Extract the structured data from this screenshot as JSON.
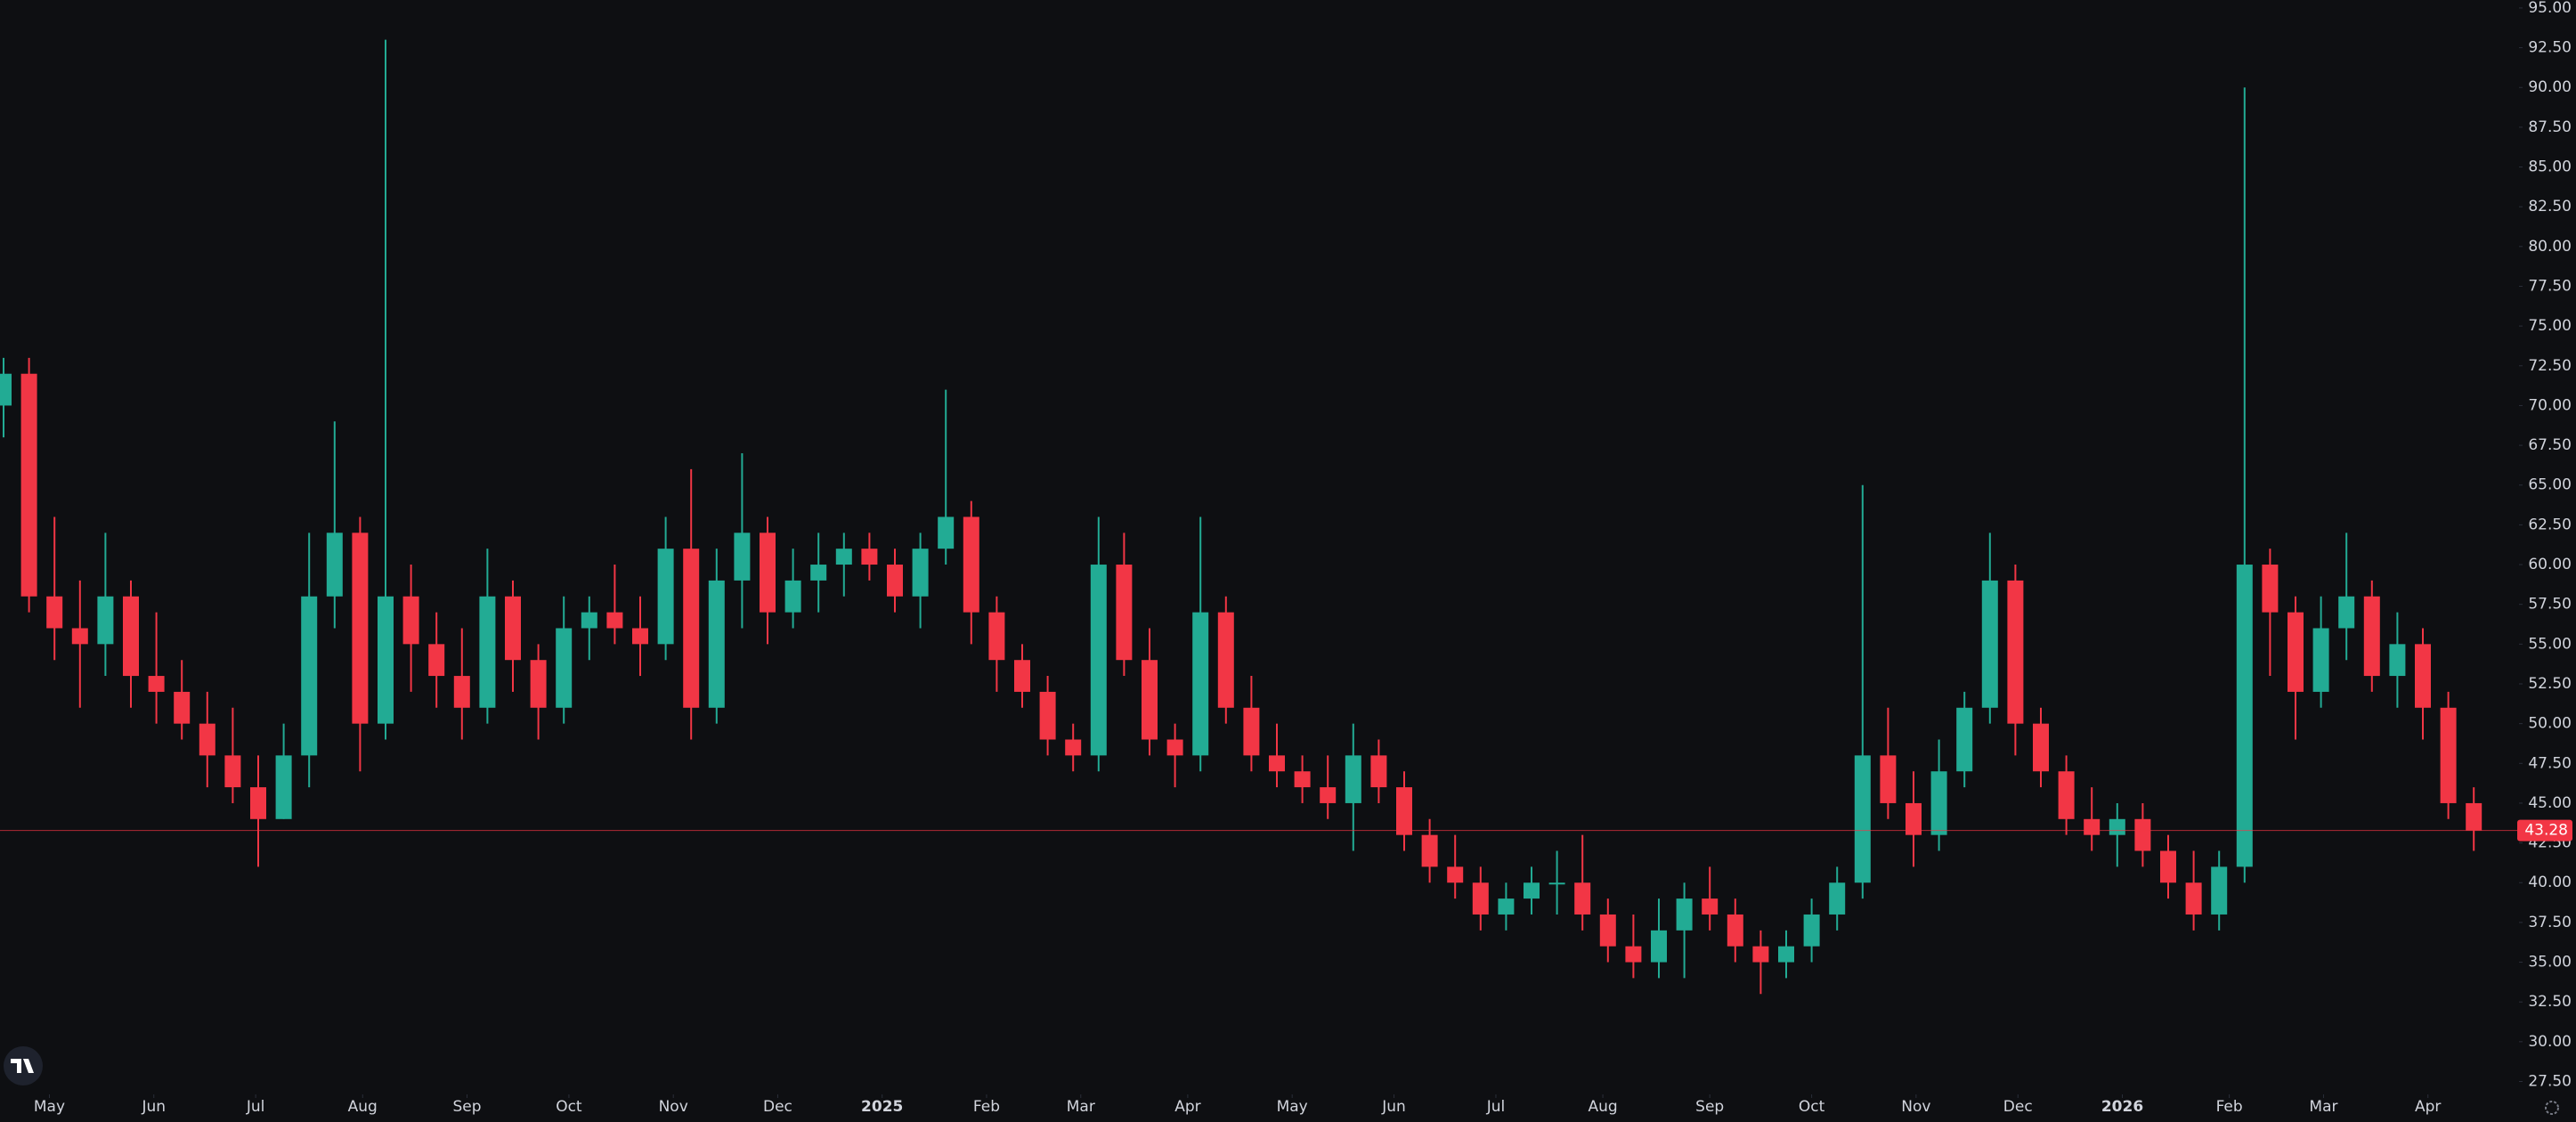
{
  "chart_data": {
    "type": "candlestick",
    "up_color": "#22ab94",
    "down_color": "#f23645",
    "open": [
      70,
      72,
      58,
      56,
      55,
      58,
      53,
      52,
      50,
      48,
      46,
      44,
      48,
      58,
      62,
      50,
      58,
      55,
      53,
      51,
      58,
      54,
      51,
      56,
      57,
      56,
      55,
      61,
      51,
      59,
      62,
      57,
      59,
      60,
      61,
      60,
      58,
      61,
      63,
      57,
      54,
      52,
      49,
      48,
      60,
      54,
      49,
      48,
      57,
      51,
      48,
      47,
      46,
      45,
      48,
      46,
      43,
      41,
      40,
      38,
      39,
      40,
      40,
      38,
      36,
      35,
      37,
      39,
      38,
      36,
      35,
      36,
      38,
      40,
      48,
      45,
      43,
      47,
      51,
      59,
      50,
      47,
      44,
      43,
      44,
      42,
      40,
      38,
      41,
      60,
      57,
      52,
      56,
      58,
      53,
      55,
      51,
      45
    ],
    "high": [
      73,
      73,
      63,
      59,
      62,
      59,
      57,
      54,
      52,
      51,
      48,
      50,
      62,
      69,
      63,
      93,
      60,
      57,
      56,
      61,
      59,
      55,
      58,
      58,
      60,
      58,
      63,
      66,
      61,
      67,
      63,
      61,
      62,
      62,
      62,
      61,
      62,
      71,
      64,
      58,
      55,
      53,
      50,
      63,
      62,
      56,
      50,
      63,
      58,
      53,
      50,
      48,
      48,
      50,
      49,
      47,
      44,
      43,
      41,
      40,
      41,
      42,
      43,
      39,
      38,
      39,
      40,
      41,
      39,
      37,
      37,
      39,
      41,
      65,
      51,
      47,
      49,
      52,
      62,
      60,
      51,
      48,
      46,
      45,
      45,
      43,
      42,
      42,
      90,
      61,
      58,
      58,
      62,
      59,
      57,
      56,
      52,
      46
    ],
    "low": [
      68,
      57,
      54,
      51,
      53,
      51,
      50,
      49,
      46,
      45,
      41,
      44,
      46,
      56,
      47,
      49,
      52,
      51,
      49,
      50,
      52,
      49,
      50,
      54,
      55,
      53,
      54,
      49,
      50,
      56,
      55,
      56,
      57,
      58,
      59,
      57,
      56,
      60,
      55,
      52,
      51,
      48,
      47,
      47,
      53,
      48,
      46,
      47,
      50,
      47,
      46,
      45,
      44,
      42,
      45,
      42,
      40,
      39,
      37,
      37,
      38,
      38,
      37,
      35,
      34,
      34,
      34,
      37,
      35,
      33,
      34,
      35,
      37,
      39,
      44,
      41,
      42,
      46,
      50,
      48,
      46,
      43,
      42,
      41,
      41,
      39,
      37,
      37,
      40,
      53,
      49,
      51,
      54,
      52,
      51,
      49,
      44,
      42
    ],
    "close": [
      72,
      58,
      56,
      55,
      58,
      53,
      52,
      50,
      48,
      46,
      44,
      48,
      58,
      62,
      50,
      58,
      55,
      53,
      51,
      58,
      54,
      51,
      56,
      57,
      56,
      55,
      61,
      51,
      59,
      62,
      57,
      59,
      60,
      61,
      60,
      58,
      61,
      63,
      57,
      54,
      52,
      49,
      48,
      60,
      54,
      49,
      48,
      57,
      51,
      48,
      47,
      46,
      45,
      48,
      46,
      43,
      41,
      40,
      38,
      39,
      40,
      40,
      38,
      36,
      35,
      37,
      39,
      38,
      36,
      35,
      36,
      38,
      40,
      48,
      45,
      43,
      47,
      51,
      59,
      50,
      47,
      44,
      43,
      44,
      42,
      40,
      38,
      41,
      60,
      57,
      52,
      56,
      58,
      53,
      55,
      51,
      45,
      43.28
    ],
    "last_price": 43.28,
    "ylim": [
      26.8,
      95.5
    ],
    "yticks": [
      {
        "value": 27.5,
        "label": "27.50"
      },
      {
        "value": 30,
        "label": "30.00"
      },
      {
        "value": 32.5,
        "label": "32.50"
      },
      {
        "value": 35,
        "label": "35.00"
      },
      {
        "value": 37.5,
        "label": "37.50"
      },
      {
        "value": 40,
        "label": "40.00"
      },
      {
        "value": 42.5,
        "label": "42.50"
      },
      {
        "value": 45,
        "label": "45.00"
      },
      {
        "value": 47.5,
        "label": "47.50"
      },
      {
        "value": 50,
        "label": "50.00"
      },
      {
        "value": 52.5,
        "label": "52.50"
      },
      {
        "value": 55,
        "label": "55.00"
      },
      {
        "value": 57.5,
        "label": "57.50"
      },
      {
        "value": 60,
        "label": "60.00"
      },
      {
        "value": 62.5,
        "label": "62.50"
      },
      {
        "value": 65,
        "label": "65.00"
      },
      {
        "value": 67.5,
        "label": "67.50"
      },
      {
        "value": 70,
        "label": "70.00"
      },
      {
        "value": 72.5,
        "label": "72.50"
      },
      {
        "value": 75,
        "label": "75.00"
      },
      {
        "value": 77.5,
        "label": "77.50"
      },
      {
        "value": 80,
        "label": "80.00"
      },
      {
        "value": 82.5,
        "label": "82.50"
      },
      {
        "value": 85,
        "label": "85.00"
      },
      {
        "value": 87.5,
        "label": "87.50"
      },
      {
        "value": 90,
        "label": "90.00"
      },
      {
        "value": 92.5,
        "label": "92.50"
      },
      {
        "value": 95,
        "label": "95.00"
      }
    ],
    "xticks": [
      {
        "value": 1.8,
        "label": "May"
      },
      {
        "value": 5.9,
        "label": "Jun"
      },
      {
        "value": 9.9,
        "label": "Jul"
      },
      {
        "value": 14.1,
        "label": "Aug"
      },
      {
        "value": 18.2,
        "label": "Sep"
      },
      {
        "value": 22.2,
        "label": "Oct"
      },
      {
        "value": 26.3,
        "label": "Nov"
      },
      {
        "value": 30.4,
        "label": "Dec"
      },
      {
        "value": 34.5,
        "label": "2025"
      },
      {
        "value": 38.6,
        "label": "Feb"
      },
      {
        "value": 42.3,
        "label": "Mar"
      },
      {
        "value": 46.5,
        "label": "Apr"
      },
      {
        "value": 50.6,
        "label": "May"
      },
      {
        "value": 54.6,
        "label": "Jun"
      },
      {
        "value": 58.6,
        "label": "Jul"
      },
      {
        "value": 62.8,
        "label": "Aug"
      },
      {
        "value": 67,
        "label": "Sep"
      },
      {
        "value": 71,
        "label": "Oct"
      },
      {
        "value": 75.1,
        "label": "Nov"
      },
      {
        "value": 79.1,
        "label": "Dec"
      },
      {
        "value": 83.2,
        "label": "2026"
      },
      {
        "value": 87.4,
        "label": "Feb"
      },
      {
        "value": 91.1,
        "label": "Mar"
      },
      {
        "value": 95.2,
        "label": "Apr"
      }
    ]
  }
}
